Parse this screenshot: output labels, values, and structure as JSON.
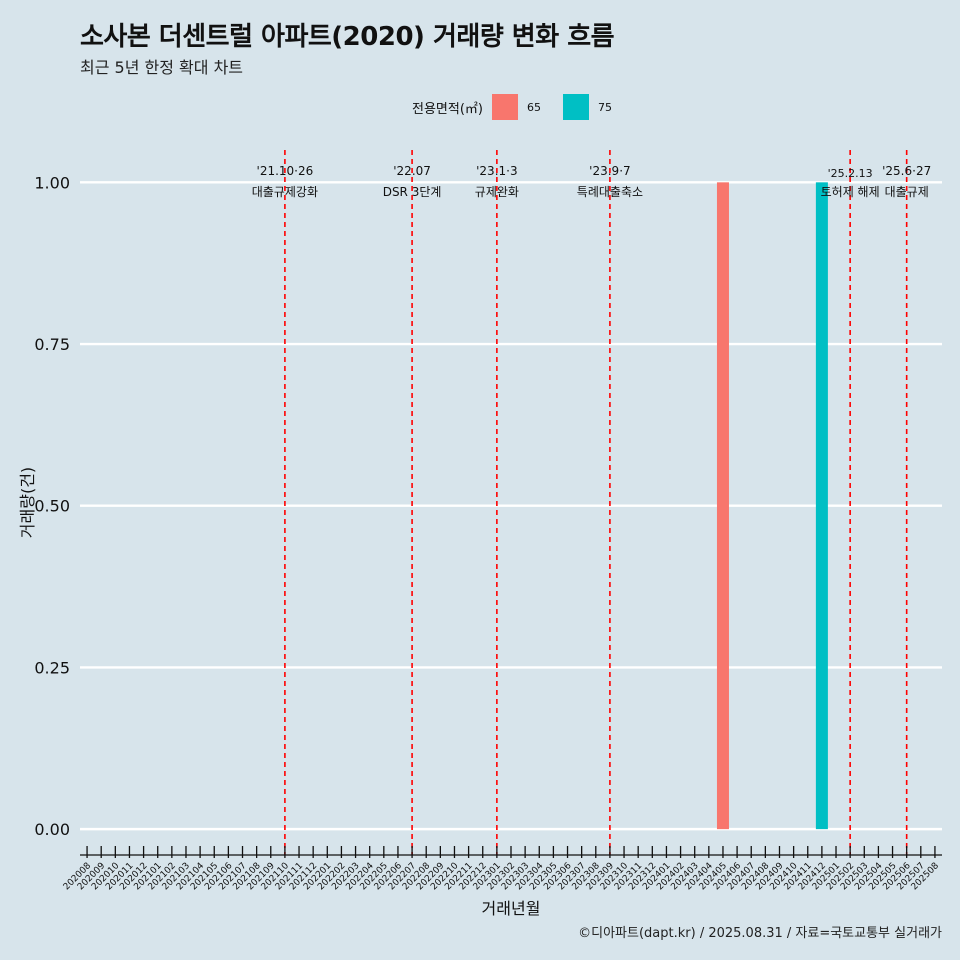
{
  "title": "소사본 더센트럴 아파트(2020) 거래량 변화 흐름",
  "subtitle": "최근 5년 한정 확대 차트",
  "caption": "©디아파트(dapt.kr) / 2025.08.31 / 자료=국토교통부 실거래가",
  "legend": {
    "title": "전용면적(㎡)",
    "items": [
      {
        "label": "65",
        "color": "#f8766d"
      },
      {
        "label": "75",
        "color": "#00bfc4"
      }
    ]
  },
  "chart_data": {
    "type": "bar",
    "xlabel": "거래년월",
    "ylabel": "거래량(건)",
    "ylim": [
      -0.04,
      1.05
    ],
    "yticks": [
      "0.00",
      "0.25",
      "0.50",
      "0.75",
      "1.00"
    ],
    "ytick_values": [
      0,
      0.25,
      0.5,
      0.75,
      1.0
    ],
    "grid": true,
    "legend_position": "top",
    "categories": [
      "202008",
      "202009",
      "202010",
      "202011",
      "202012",
      "202101",
      "202102",
      "202103",
      "202104",
      "202105",
      "202106",
      "202107",
      "202108",
      "202109",
      "202110",
      "202111",
      "202112",
      "202201",
      "202202",
      "202203",
      "202204",
      "202205",
      "202206",
      "202207",
      "202208",
      "202209",
      "202210",
      "202211",
      "202212",
      "202301",
      "202302",
      "202303",
      "202304",
      "202305",
      "202306",
      "202307",
      "202308",
      "202309",
      "202310",
      "202311",
      "202312",
      "202401",
      "202402",
      "202403",
      "202404",
      "202405",
      "202406",
      "202407",
      "202408",
      "202409",
      "202410",
      "202411",
      "202412",
      "202501",
      "202502",
      "202503",
      "202504",
      "202505",
      "202506",
      "202507",
      "202508"
    ],
    "series": [
      {
        "name": "65",
        "color": "#f8766d",
        "points": [
          {
            "x": "202405",
            "y": 1
          }
        ]
      },
      {
        "name": "75",
        "color": "#00bfc4",
        "points": [
          {
            "x": "202412",
            "y": 1
          }
        ]
      }
    ],
    "annotations": [
      {
        "x": "202110",
        "line1": "'21.10·26",
        "line2": "대출규제강화",
        "color": "#ff0000"
      },
      {
        "x": "202207",
        "line1": "'22.07",
        "line2": "DSR 3단계",
        "color": "#ff0000"
      },
      {
        "x": "202301",
        "line1": "'23.1·3",
        "line2": "규제완화",
        "color": "#ff0000"
      },
      {
        "x": "202309",
        "line1": "'23.9·7",
        "line2": "특례대출축소",
        "color": "#ff0000"
      },
      {
        "x": "202502",
        "line1": "'25.2.13",
        "line2": "토허제 해제",
        "color": "#ff0000"
      },
      {
        "x": "202506",
        "line1": "'25.6·27",
        "line2": "대출규제",
        "color": "#ff0000"
      }
    ]
  }
}
